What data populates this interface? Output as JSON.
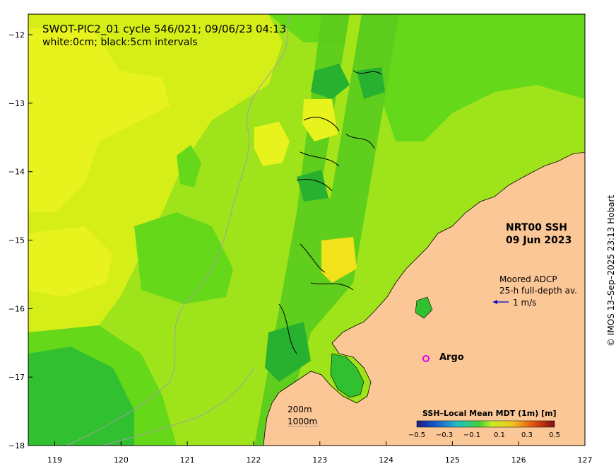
{
  "title": "SWOT-PIC2_01 cycle 546/021; 09/06/23 04:13",
  "subtitle": "white:0cm; black:5cm intervals",
  "product": {
    "line1": "NRT00 SSH",
    "line2": "09 Jun 2023"
  },
  "adcp_legend": {
    "line1": "Moored ADCP",
    "line2": "25-h full-depth av.",
    "scale": "1 m/s"
  },
  "argo_label": "Argo",
  "depth_legend": {
    "d200": "200m",
    "d1000": "1000m"
  },
  "colorbar": {
    "title": "SSH–Local Mean MDT (1m) [m]",
    "ticks": [
      "−0.5",
      "−0.3",
      "−0.1",
      "0.1",
      "0.3",
      "0.5"
    ]
  },
  "credit": "© IMOS 13–Sep–2025 23:13 Hobart",
  "axes": {
    "x_ticks": [
      "119",
      "120",
      "121",
      "122",
      "123",
      "124",
      "125",
      "126",
      "127"
    ],
    "y_ticks": [
      "−12",
      "−13",
      "−14",
      "−15",
      "−16",
      "−17",
      "−18"
    ],
    "lon_range": [
      118.6,
      127
    ],
    "lat_range": [
      -18,
      -11.7
    ]
  },
  "colors": {
    "land": "#fcc797",
    "ssh_yellow": "#e6f018",
    "ssh_lightgreen": "#b2ea18",
    "ssh_green": "#64d818",
    "ssh_darkgreen": "#30c030",
    "argo": "#e800e8",
    "adcp_arrow": "#0000cc"
  }
}
